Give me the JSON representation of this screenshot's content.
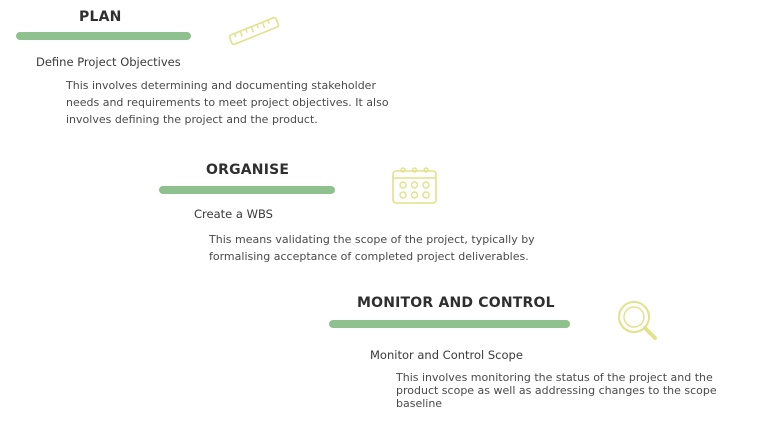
{
  "stages": [
    {
      "title": "PLAN",
      "subtitle": "Define Project Objectives",
      "description_lines": [
        "This involves determining and documenting stakeholder",
        "needs and requirements to meet project objectives. It also",
        "involves defining the project and the product."
      ],
      "icon": "ruler-icon"
    },
    {
      "title": "ORGANISE",
      "subtitle": "Create a WBS",
      "description_lines": [
        "This means validating the scope of the project, typically by",
        "formalising acceptance of completed project deliverables."
      ],
      "icon": "calendar-icon"
    },
    {
      "title": "MONITOR AND CONTROL",
      "subtitle": "Monitor and Control  Scope",
      "description_lines": [
        "This involves monitoring the status of the project and the",
        "product scope as well as addressing changes to the scope",
        "baseline"
      ],
      "icon": "magnifier-icon"
    }
  ],
  "colors": {
    "bar": "#8fc18f",
    "icon": "#dfe38a",
    "title": "#2f2f2f",
    "text": "#4a4a4a"
  }
}
